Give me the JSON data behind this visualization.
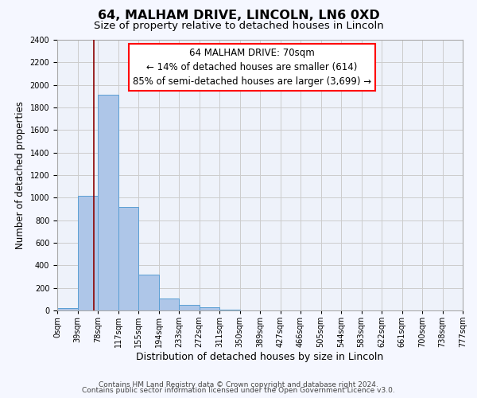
{
  "title_line1": "64, MALHAM DRIVE, LINCOLN, LN6 0XD",
  "title_line2": "Size of property relative to detached houses in Lincoln",
  "xlabel": "Distribution of detached houses by size in Lincoln",
  "ylabel": "Number of detached properties",
  "bin_labels": [
    "0sqm",
    "39sqm",
    "78sqm",
    "117sqm",
    "155sqm",
    "194sqm",
    "233sqm",
    "272sqm",
    "311sqm",
    "350sqm",
    "389sqm",
    "427sqm",
    "466sqm",
    "505sqm",
    "544sqm",
    "583sqm",
    "622sqm",
    "661sqm",
    "700sqm",
    "738sqm",
    "777sqm"
  ],
  "bar_values": [
    20,
    1020,
    1910,
    920,
    320,
    105,
    50,
    25,
    5,
    0,
    0,
    0,
    0,
    0,
    0,
    0,
    0,
    0,
    0,
    0
  ],
  "bar_color": "#aec6e8",
  "bar_edge_color": "#5a9fd4",
  "annotation_line1": "64 MALHAM DRIVE: 70sqm",
  "annotation_line2": "← 14% of detached houses are smaller (614)",
  "annotation_line3": "85% of semi-detached houses are larger (3,699) →",
  "annotation_box_color": "white",
  "annotation_box_edge_color": "red",
  "marker_line_color": "#8b0000",
  "ylim": [
    0,
    2400
  ],
  "yticks": [
    0,
    200,
    400,
    600,
    800,
    1000,
    1200,
    1400,
    1600,
    1800,
    2000,
    2200,
    2400
  ],
  "grid_color": "#cccccc",
  "plot_bg_color": "#eef2fa",
  "fig_bg_color": "#f5f7ff",
  "footer_line1": "Contains HM Land Registry data © Crown copyright and database right 2024.",
  "footer_line2": "Contains public sector information licensed under the Open Government Licence v3.0.",
  "title_fontsize": 11.5,
  "subtitle_fontsize": 9.5,
  "xlabel_fontsize": 9,
  "ylabel_fontsize": 8.5,
  "tick_fontsize": 7,
  "annotation_fontsize": 8.5,
  "footer_fontsize": 6.5
}
